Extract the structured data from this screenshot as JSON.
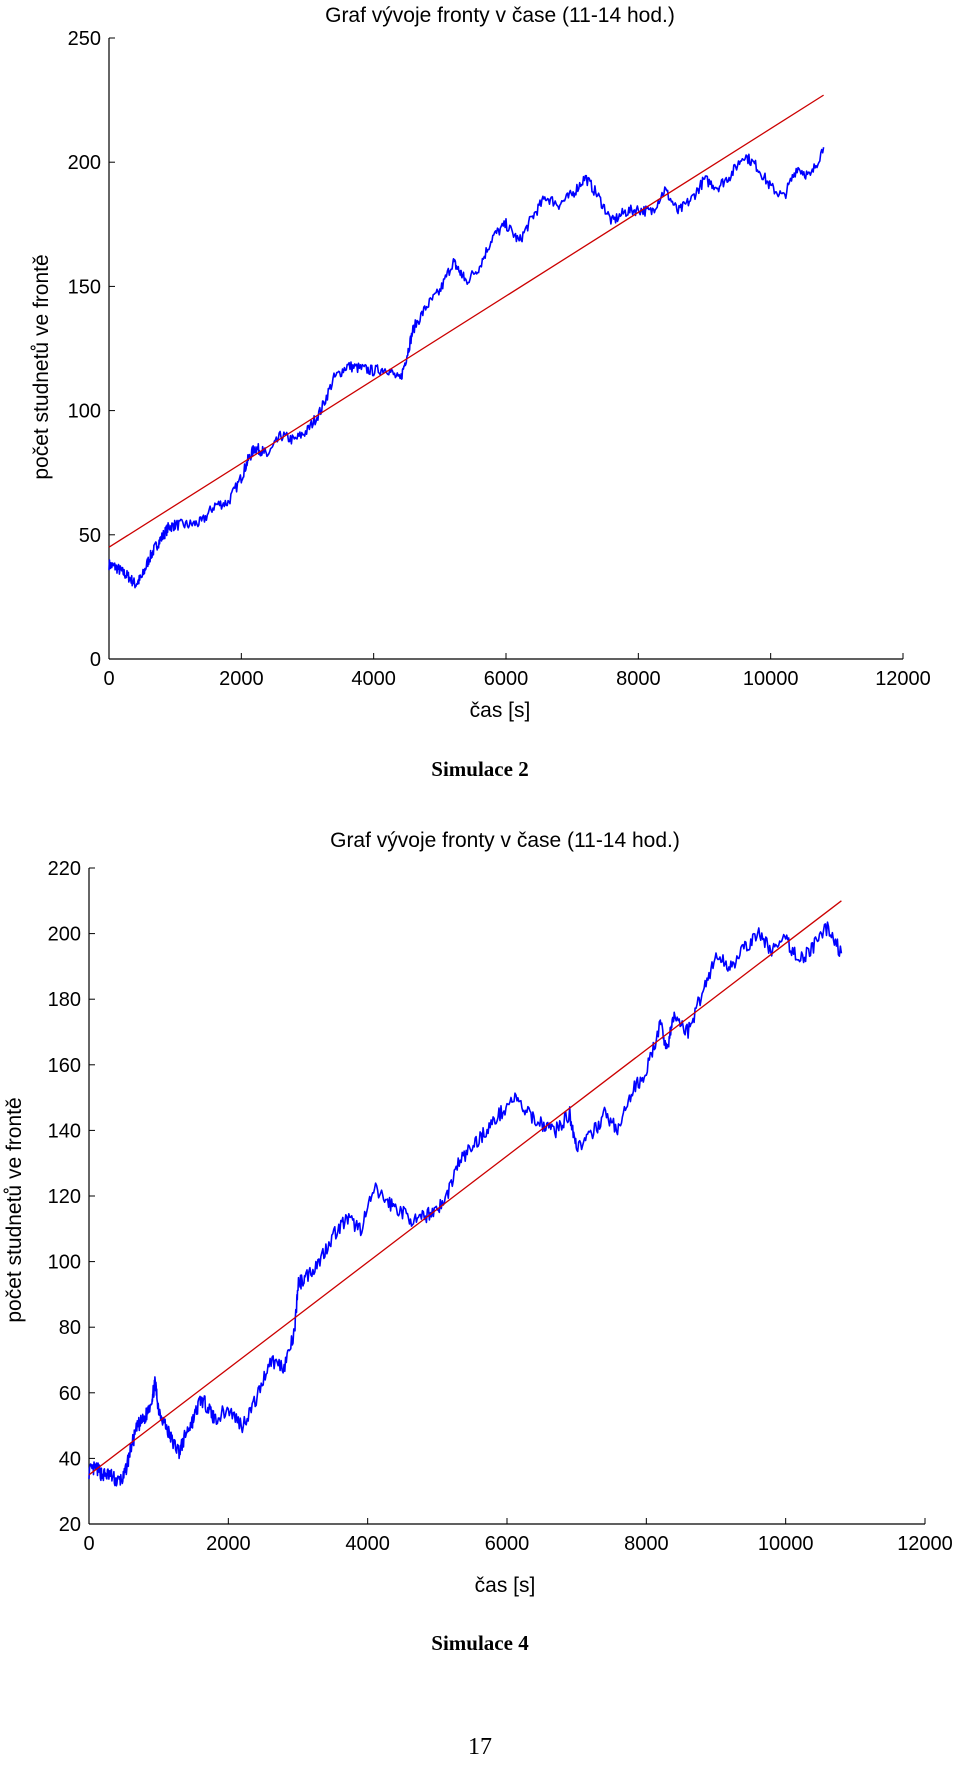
{
  "chart_data": [
    {
      "type": "line",
      "title": "Graf vývoje fronty v čase (11-14 hod.)",
      "xlabel": "čas [s]",
      "ylabel": "počet studnetů ve frontě",
      "xlim": [
        0,
        12000
      ],
      "ylim": [
        0,
        250
      ],
      "xticks": [
        "0",
        "2000",
        "4000",
        "6000",
        "8000",
        "10000",
        "12000"
      ],
      "yticks": [
        "0",
        "50",
        "100",
        "150",
        "200",
        "250"
      ],
      "grid": false,
      "caption": "Simulace 2",
      "colors": {
        "series": "#0000ff",
        "trend": "#cc0000"
      },
      "series": [
        {
          "x": [
            0,
            100,
            200,
            300,
            400,
            500,
            600,
            700,
            800,
            900,
            1000,
            1200,
            1400,
            1600,
            1800,
            2000,
            2100,
            2200,
            2300,
            2400,
            2600,
            2800,
            3000,
            3200,
            3400,
            3600,
            3800,
            4000,
            4200,
            4400,
            4500,
            4600,
            4800,
            5000,
            5200,
            5300,
            5400,
            5600,
            5800,
            6000,
            6200,
            6400,
            6600,
            6800,
            7000,
            7200,
            7400,
            7600,
            7800,
            8000,
            8200,
            8400,
            8600,
            8800,
            9000,
            9200,
            9400,
            9600,
            9800,
            10000,
            10200,
            10400,
            10600,
            10800
          ],
          "values": [
            38,
            37,
            35,
            33,
            30,
            33,
            40,
            45,
            49,
            53,
            54,
            54,
            55,
            62,
            63,
            73,
            80,
            85,
            84,
            82,
            90,
            88,
            92,
            100,
            113,
            118,
            117,
            116,
            117,
            112,
            122,
            133,
            142,
            148,
            160,
            156,
            152,
            158,
            170,
            175,
            168,
            178,
            186,
            183,
            187,
            194,
            186,
            176,
            180,
            181,
            180,
            189,
            180,
            185,
            193,
            190,
            195,
            203,
            198,
            190,
            186,
            198,
            194,
            206
          ]
        },
        {
          "x": [
            0,
            10800
          ],
          "values": [
            45,
            227
          ]
        }
      ]
    },
    {
      "type": "line",
      "title": "Graf vývoje fronty v čase (11-14 hod.)",
      "xlabel": "čas [s]",
      "ylabel": "počet studnetů ve frontě",
      "xlim": [
        0,
        12000
      ],
      "ylim": [
        20,
        220
      ],
      "xticks": [
        "0",
        "2000",
        "4000",
        "6000",
        "8000",
        "10000",
        "12000"
      ],
      "yticks": [
        "20",
        "40",
        "60",
        "80",
        "100",
        "120",
        "140",
        "160",
        "180",
        "200",
        "220"
      ],
      "grid": false,
      "caption": "Simulace 4",
      "colors": {
        "series": "#0000ff",
        "trend": "#cc0000"
      },
      "series": [
        {
          "x": [
            0,
            100,
            200,
            300,
            400,
            500,
            600,
            700,
            800,
            900,
            950,
            1000,
            1100,
            1200,
            1300,
            1400,
            1500,
            1600,
            1700,
            1800,
            2000,
            2200,
            2400,
            2600,
            2800,
            2950,
            3000,
            3100,
            3300,
            3500,
            3700,
            3900,
            4100,
            4300,
            4500,
            4700,
            4900,
            5100,
            5300,
            5500,
            5700,
            5900,
            6100,
            6300,
            6500,
            6700,
            6900,
            7000,
            7200,
            7400,
            7600,
            7800,
            8000,
            8200,
            8300,
            8400,
            8600,
            8800,
            9000,
            9200,
            9400,
            9600,
            9800,
            10000,
            10200,
            10400,
            10600,
            10800
          ],
          "values": [
            36,
            37,
            35,
            35,
            33,
            34,
            43,
            50,
            52,
            58,
            63,
            55,
            50,
            45,
            42,
            48,
            52,
            58,
            56,
            52,
            55,
            50,
            58,
            70,
            68,
            78,
            93,
            95,
            100,
            108,
            113,
            110,
            122,
            118,
            115,
            112,
            115,
            118,
            130,
            135,
            140,
            145,
            150,
            145,
            142,
            140,
            145,
            135,
            138,
            145,
            140,
            152,
            158,
            172,
            165,
            175,
            170,
            182,
            193,
            190,
            195,
            200,
            195,
            198,
            192,
            196,
            202,
            194
          ]
        },
        {
          "x": [
            0,
            10800
          ],
          "values": [
            35,
            210
          ]
        }
      ]
    }
  ],
  "page_number": "17"
}
